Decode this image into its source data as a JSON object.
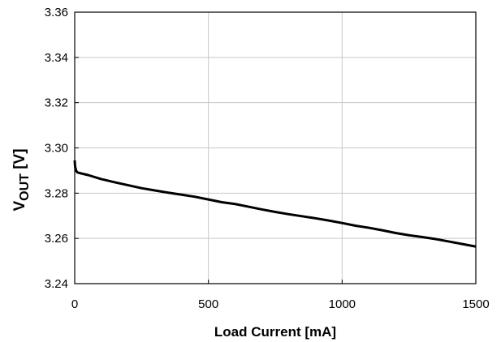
{
  "chart_data": {
    "type": "line",
    "xlabel": "Load Current [mA]",
    "ylabel": {
      "main": "V",
      "sub": "OUT",
      "unit": " [V]"
    },
    "xlim": [
      0,
      1500
    ],
    "ylim": [
      3.24,
      3.36
    ],
    "x_ticks": [
      "0",
      "500",
      "1000",
      "1500"
    ],
    "y_ticks": [
      "3.24",
      "3.26",
      "3.28",
      "3.30",
      "3.32",
      "3.34",
      "3.36"
    ],
    "grid": true,
    "series": [
      {
        "x": [
          0,
          1,
          2,
          4,
          6,
          10,
          15,
          25,
          50,
          100,
          150,
          200,
          250,
          300,
          350,
          400,
          450,
          500,
          550,
          600,
          650,
          700,
          750,
          800,
          850,
          900,
          950,
          1000,
          1050,
          1100,
          1150,
          1200,
          1250,
          1300,
          1350,
          1400,
          1450,
          1500
        ],
        "y": [
          3.2945,
          3.2925,
          3.2915,
          3.2905,
          3.2898,
          3.2892,
          3.289,
          3.2887,
          3.288,
          3.2862,
          3.2848,
          3.2835,
          3.2822,
          3.2812,
          3.2802,
          3.2793,
          3.2784,
          3.2772,
          3.276,
          3.2752,
          3.274,
          3.2728,
          3.2717,
          3.2707,
          3.2698,
          3.2689,
          3.2679,
          3.2668,
          3.2656,
          3.2647,
          3.2636,
          3.2624,
          3.2614,
          3.2606,
          3.2597,
          3.2586,
          3.2575,
          3.2564
        ]
      }
    ]
  }
}
